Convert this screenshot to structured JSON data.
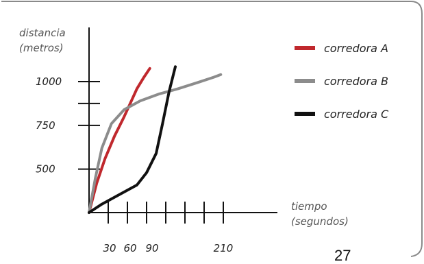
{
  "chart_data": {
    "type": "line",
    "ylabel": [
      "distancia",
      "(metros)"
    ],
    "xlabel": [
      "tiempo",
      "(segundos)"
    ],
    "y_tick_labels": [
      {
        "label": "1000",
        "value": 1000
      },
      {
        "label": "750",
        "value": 750
      },
      {
        "label": "500",
        "value": 500
      }
    ],
    "y_tick_marks": [
      500,
      750,
      875,
      1000
    ],
    "x_tick_labels": [
      {
        "label": "30",
        "value": 30
      },
      {
        "label": "60",
        "value": 60
      },
      {
        "label": "90",
        "value": 90
      },
      {
        "label": "210",
        "value": 210
      }
    ],
    "x_tick_marks": [
      30,
      60,
      90,
      120,
      150,
      180,
      210
    ],
    "legend_position": "top-right",
    "series": [
      {
        "name": "corredora A",
        "color": "#c0282d",
        "points": [
          [
            0,
            252
          ],
          [
            12,
            420
          ],
          [
            25,
            560
          ],
          [
            40,
            690
          ],
          [
            55,
            800
          ],
          [
            65,
            880
          ],
          [
            75,
            960
          ],
          [
            85,
            1020
          ],
          [
            95,
            1075
          ]
        ]
      },
      {
        "name": "corredora B",
        "color": "#8c8c8c",
        "points": [
          [
            0,
            252
          ],
          [
            10,
            450
          ],
          [
            20,
            620
          ],
          [
            35,
            760
          ],
          [
            55,
            840
          ],
          [
            80,
            890
          ],
          [
            110,
            930
          ],
          [
            140,
            960
          ],
          [
            170,
            995
          ],
          [
            195,
            1025
          ],
          [
            206,
            1040
          ]
        ]
      },
      {
        "name": "corredora C",
        "color": "#111111",
        "points": [
          [
            0,
            252
          ],
          [
            20,
            300
          ],
          [
            45,
            350
          ],
          [
            75,
            410
          ],
          [
            90,
            480
          ],
          [
            105,
            590
          ],
          [
            115,
            760
          ],
          [
            125,
            940
          ],
          [
            135,
            1085
          ]
        ]
      }
    ]
  },
  "page_number": "27"
}
